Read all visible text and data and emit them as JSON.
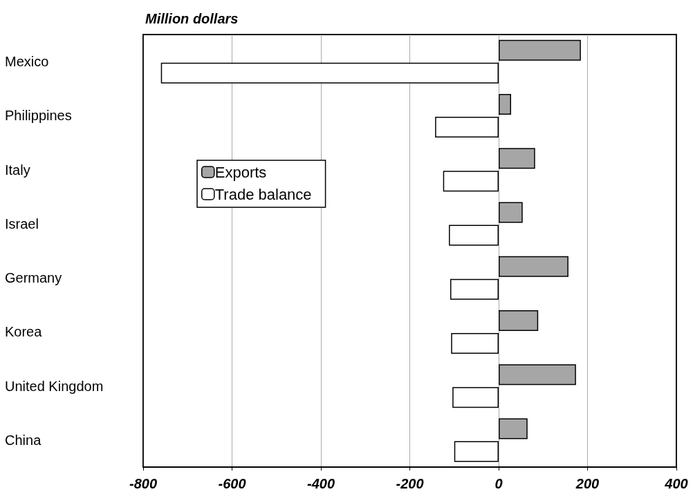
{
  "chart_data": {
    "type": "bar",
    "orientation": "horizontal",
    "title": "Million dollars",
    "categories": [
      "Mexico",
      "Philippines",
      "Italy",
      "Israel",
      "Germany",
      "Korea",
      "United Kingdom",
      "China"
    ],
    "series": [
      {
        "name": "Exports",
        "color": "#a6a6a6",
        "values": [
          185,
          28,
          82,
          54,
          157,
          89,
          174,
          65
        ]
      },
      {
        "name": "Trade balance",
        "color": "#ffffff",
        "values": [
          -760,
          -143,
          -125,
          -112,
          -109,
          -107,
          -104,
          -100
        ]
      }
    ],
    "xlim": [
      -800,
      400
    ],
    "xticks": [
      -800,
      -600,
      -400,
      -200,
      0,
      200,
      400
    ],
    "grid": "x",
    "legend": "left"
  }
}
